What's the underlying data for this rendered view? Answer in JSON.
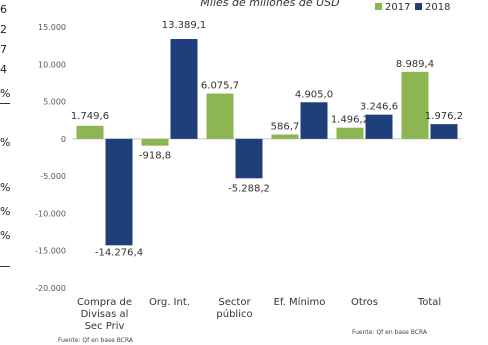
{
  "page": {
    "left_edge_fragments": [
      "6",
      "2",
      "7",
      "4",
      "%",
      "%",
      "%",
      "%",
      "%"
    ]
  },
  "chart_data": {
    "type": "bar",
    "title": "Miles de millones de USD",
    "categories": [
      "Compra de Divisas al Sec Priv",
      "Org. Int.",
      "Sector público",
      "Ef. Mínimo",
      "Otros",
      "Total"
    ],
    "category_lines": [
      [
        "Compra de",
        "Divisas al",
        "Sec Priv"
      ],
      [
        "Org. Int."
      ],
      [
        "Sector",
        "público"
      ],
      [
        "Ef. Mínimo"
      ],
      [
        "Otros"
      ],
      [
        "Total"
      ]
    ],
    "series": [
      {
        "name": "2017",
        "color": "#8db552",
        "values": [
          1749.6,
          -918.8,
          6075.7,
          586.7,
          1496.2,
          8989.4
        ],
        "labels": [
          "1.749,6",
          "-918,8",
          "6.075,7",
          "586,7",
          "1.496,2",
          "8.989,4"
        ]
      },
      {
        "name": "2018",
        "color": "#1f3f7a",
        "values": [
          -14276.4,
          13389.1,
          -5288.2,
          4905.0,
          3246.6,
          1976.2
        ],
        "labels": [
          "-14.276,4",
          "13.389,1",
          "-5.288,2",
          "4.905,0",
          "3.246,6",
          "1.976,2"
        ]
      }
    ],
    "ylim": [
      -20000,
      15000
    ],
    "yticks": [
      15000,
      10000,
      5000,
      0,
      -5000,
      -10000,
      -15000,
      -20000
    ],
    "ytick_labels": [
      "15.000",
      "10.000",
      "5.000",
      "0",
      "-5.000",
      "-10.000",
      "-15.000",
      "-20.000"
    ],
    "grid": false,
    "legend_position": "top-right",
    "sources": [
      "Fuente: Qf en base BCRA",
      "Fuente: Qf en base BCRA"
    ]
  }
}
